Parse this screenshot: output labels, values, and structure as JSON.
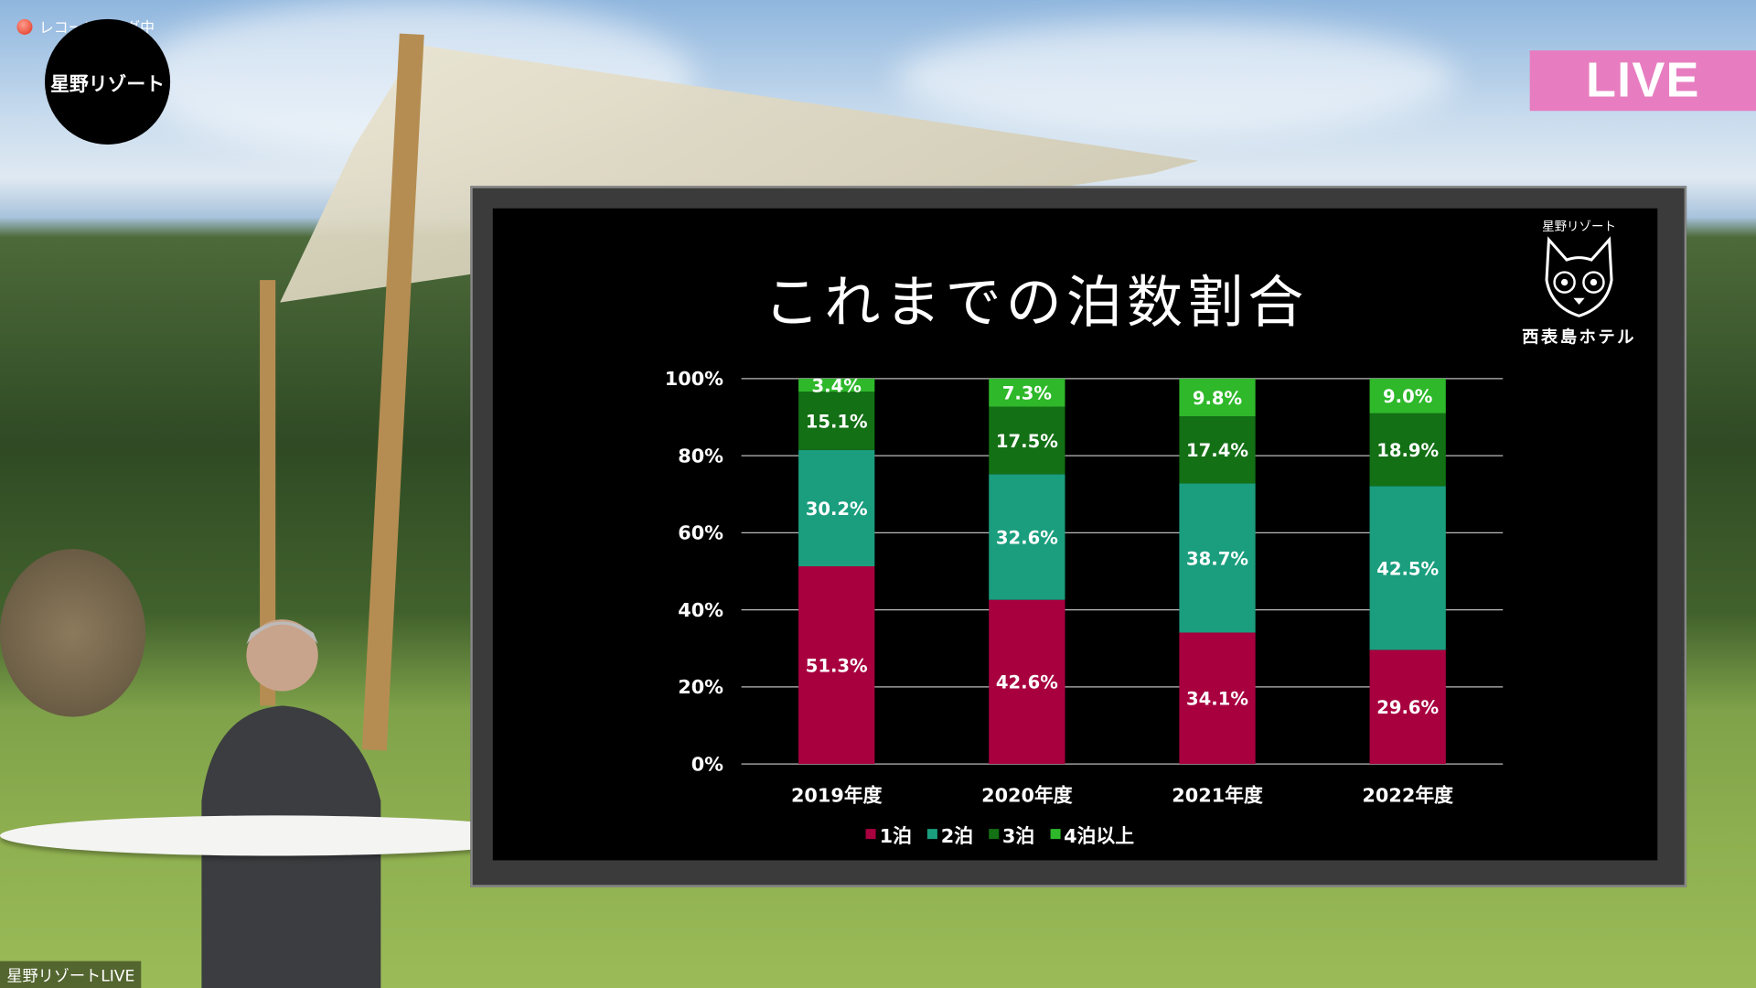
{
  "recording": {
    "label": "レコーディング中"
  },
  "brand_badge": {
    "text": "星野リゾート"
  },
  "live_badge": {
    "text": "LIVE",
    "color": "#e77dc0"
  },
  "footer": {
    "channel": "星野リゾートLIVE"
  },
  "slide": {
    "title": "これまでの泊数割合",
    "logo": {
      "small": "星野リゾート",
      "name": "西表島ホテル"
    }
  },
  "chart_data": {
    "type": "bar",
    "stacked": true,
    "categories": [
      "2019年度",
      "2020年度",
      "2021年度",
      "2022年度"
    ],
    "ylim": [
      0,
      100
    ],
    "yticks": [
      "0%",
      "20%",
      "40%",
      "60%",
      "80%",
      "100%"
    ],
    "grid": true,
    "legend_position": "bottom",
    "series": [
      {
        "name": "1泊",
        "color": "#a8003f",
        "values": [
          51.3,
          42.6,
          34.1,
          29.6
        ],
        "labels": [
          "51.3%",
          "42.6%",
          "34.1%",
          "29.6%"
        ]
      },
      {
        "name": "2泊",
        "color": "#1a9e7e",
        "values": [
          30.2,
          32.6,
          38.7,
          42.5
        ],
        "labels": [
          "30.2%",
          "32.6%",
          "38.7%",
          "42.5%"
        ]
      },
      {
        "name": "3泊",
        "color": "#137015",
        "values": [
          15.1,
          17.5,
          17.4,
          18.9
        ],
        "labels": [
          "15.1%",
          "17.5%",
          "17.4%",
          "18.9%"
        ]
      },
      {
        "name": "4泊以上",
        "color": "#2eb82a",
        "values": [
          3.4,
          7.3,
          9.8,
          9.0
        ],
        "labels": [
          "3.4%",
          "7.3%",
          "9.8%",
          "9.0%"
        ]
      }
    ]
  }
}
